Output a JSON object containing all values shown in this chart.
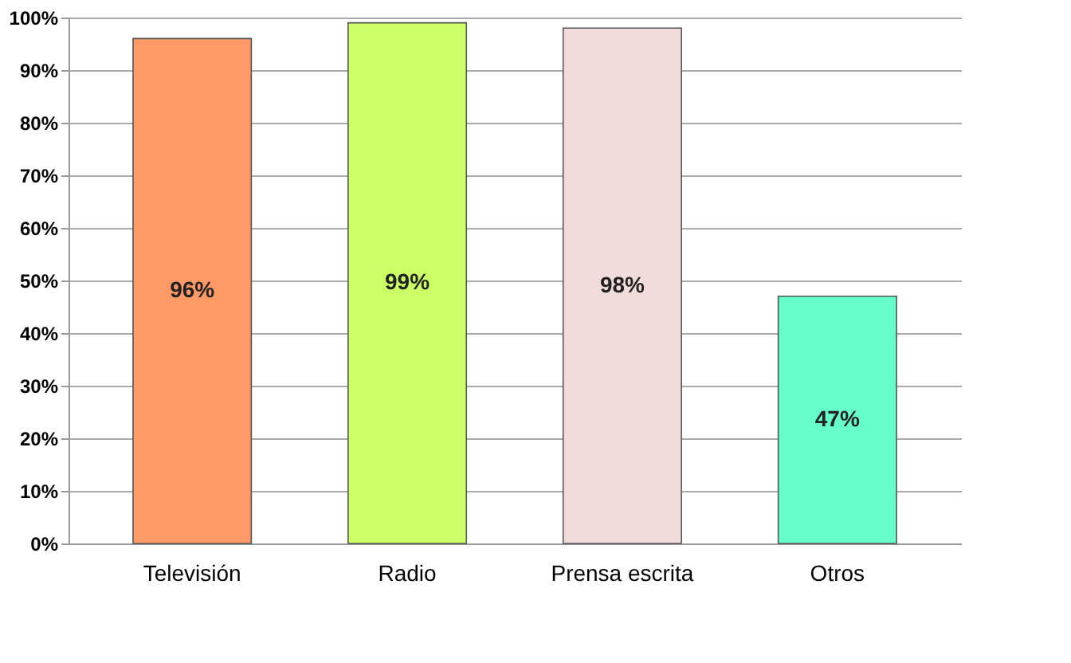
{
  "chart_data": {
    "type": "bar",
    "categories": [
      "Televisión",
      "Radio",
      "Prensa escrita",
      "Otros"
    ],
    "values": [
      96,
      99,
      98,
      47
    ],
    "colors": [
      "#ff9966",
      "#ccff66",
      "#f2dcdb",
      "#66ffcc"
    ],
    "ylim": [
      0,
      100
    ],
    "yticks": [
      {
        "value": 0,
        "label": "0%"
      },
      {
        "value": 10,
        "label": "10%"
      },
      {
        "value": 20,
        "label": "20%"
      },
      {
        "value": 30,
        "label": "30%"
      },
      {
        "value": 40,
        "label": "40%"
      },
      {
        "value": 50,
        "label": "50%"
      },
      {
        "value": 60,
        "label": "60%"
      },
      {
        "value": 70,
        "label": "70%"
      },
      {
        "value": 80,
        "label": "80%"
      },
      {
        "value": 90,
        "label": "90%"
      },
      {
        "value": 100,
        "label": "100%"
      }
    ],
    "value_labels": [
      "96%",
      "99%",
      "98%",
      "47%"
    ],
    "grid": "y"
  }
}
